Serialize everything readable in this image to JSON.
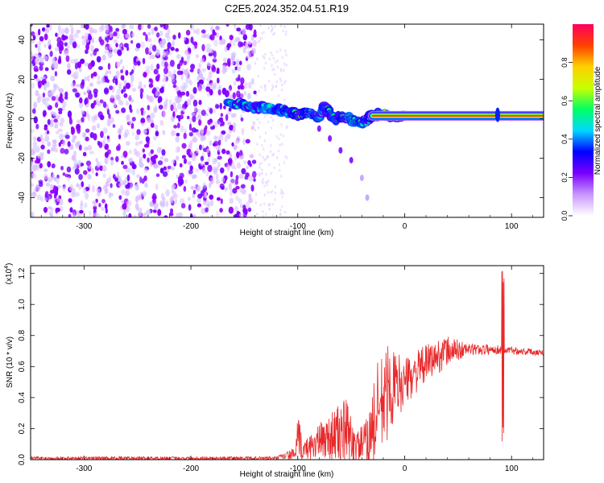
{
  "title": "C2E5.2024.352.04.51.R19",
  "chart_data": [
    {
      "id": "spectrogram",
      "type": "heatmap",
      "xlabel": "Height of straight line (km)",
      "ylabel": "Frequency (Hz)",
      "xlim": [
        -350,
        130
      ],
      "ylim": [
        -50,
        48
      ],
      "x_ticks": [
        -300,
        -200,
        -100,
        0,
        100
      ],
      "x_tick_labels": [
        "-300",
        "-200",
        "-100",
        "0",
        "100"
      ],
      "y_ticks": [
        -40,
        -20,
        0,
        20,
        40
      ],
      "y_tick_labels": [
        "-40",
        "-20",
        "0",
        "20",
        "40"
      ],
      "colorbar": {
        "label": "Normalized spectral amplitude",
        "range": [
          0,
          1
        ],
        "ticks": [
          0,
          0.2,
          0.4,
          0.6,
          0.8
        ],
        "tick_labels": [
          "0.0",
          "0.2",
          "0.4",
          "0.6",
          "0.8"
        ],
        "colors": [
          "#ffffff",
          "#c896ff",
          "#7a00ff",
          "#0000ff",
          "#00d8ff",
          "#00ff66",
          "#c8ff00",
          "#ffd000",
          "#ff4000",
          "#ff0060"
        ]
      },
      "noise_region_x": [
        -350,
        -140
      ],
      "main_band": [
        {
          "x": -165,
          "y": 8,
          "a": 0.55
        },
        {
          "x": -150,
          "y": 7,
          "a": 0.5
        },
        {
          "x": -140,
          "y": 6,
          "a": 0.45
        },
        {
          "x": -125,
          "y": 5,
          "a": 0.5
        },
        {
          "x": -110,
          "y": 4,
          "a": 0.45
        },
        {
          "x": -100,
          "y": 2,
          "a": 0.6
        },
        {
          "x": -90,
          "y": 3,
          "a": 0.55
        },
        {
          "x": -80,
          "y": 1,
          "a": 0.5
        },
        {
          "x": -75,
          "y": 6,
          "a": 0.55
        },
        {
          "x": -65,
          "y": 0,
          "a": 0.55
        },
        {
          "x": -55,
          "y": 1,
          "a": 0.6
        },
        {
          "x": -45,
          "y": -2,
          "a": 0.55
        },
        {
          "x": -35,
          "y": -1,
          "a": 0.5
        },
        {
          "x": -30,
          "y": 2,
          "a": 0.6
        },
        {
          "x": -20,
          "y": 2,
          "a": 0.7
        },
        {
          "x": -10,
          "y": 1,
          "a": 0.75
        },
        {
          "x": 0,
          "y": 2,
          "a": 0.7
        }
      ],
      "chirp": [
        {
          "x": -80,
          "y": -5
        },
        {
          "x": -70,
          "y": -10
        },
        {
          "x": -60,
          "y": -16
        },
        {
          "x": -50,
          "y": -21
        },
        {
          "x": -40,
          "y": -30
        },
        {
          "x": -35,
          "y": -40
        }
      ],
      "line": {
        "x_start": -30,
        "x_end": 130,
        "y": 1.5,
        "amp": 0.9
      },
      "spikes": [
        {
          "x": 87,
          "y": 2
        }
      ]
    },
    {
      "id": "snr",
      "type": "line",
      "xlabel": "Height of straight line (km)",
      "ylabel": "SNR (10 * v/v)",
      "y_scale_label": "(x10",
      "y_scale_exponent": "4",
      "y_scale_close": ")",
      "xlim": [
        -350,
        130
      ],
      "ylim": [
        0,
        1.25
      ],
      "x_ticks": [
        -300,
        -200,
        -100,
        0,
        100
      ],
      "x_tick_labels": [
        "-300",
        "-200",
        "-100",
        "0",
        "100"
      ],
      "y_ticks": [
        0,
        0.2,
        0.4,
        0.6,
        0.8,
        1.0,
        1.2
      ],
      "y_tick_labels": [
        "0.0",
        "0.2",
        "0.4",
        "0.6",
        "0.8",
        "1.0",
        "1.2"
      ],
      "color": "#e8292b",
      "envelope": [
        {
          "x": -350,
          "base": 0.01,
          "amp": 0.01
        },
        {
          "x": -120,
          "base": 0.01,
          "amp": 0.01
        },
        {
          "x": -102,
          "base": 0.04,
          "amp": 0.04
        },
        {
          "x": -100,
          "base": 0.12,
          "amp": 0.18
        },
        {
          "x": -95,
          "base": 0.06,
          "amp": 0.05
        },
        {
          "x": -85,
          "base": 0.1,
          "amp": 0.1
        },
        {
          "x": -70,
          "base": 0.15,
          "amp": 0.15
        },
        {
          "x": -55,
          "base": 0.18,
          "amp": 0.22
        },
        {
          "x": -45,
          "base": 0.08,
          "amp": 0.1
        },
        {
          "x": -35,
          "base": 0.12,
          "amp": 0.15
        },
        {
          "x": -25,
          "base": 0.3,
          "amp": 0.35
        },
        {
          "x": -15,
          "base": 0.45,
          "amp": 0.3
        },
        {
          "x": 0,
          "base": 0.5,
          "amp": 0.15
        },
        {
          "x": 20,
          "base": 0.62,
          "amp": 0.12
        },
        {
          "x": 40,
          "base": 0.7,
          "amp": 0.1
        },
        {
          "x": 60,
          "base": 0.71,
          "amp": 0.04
        },
        {
          "x": 85,
          "base": 0.71,
          "amp": 0.03
        },
        {
          "x": 130,
          "base": 0.69,
          "amp": 0.02
        }
      ],
      "spike": {
        "x": 92,
        "top": 1.24,
        "bottom": 0.1
      }
    }
  ]
}
